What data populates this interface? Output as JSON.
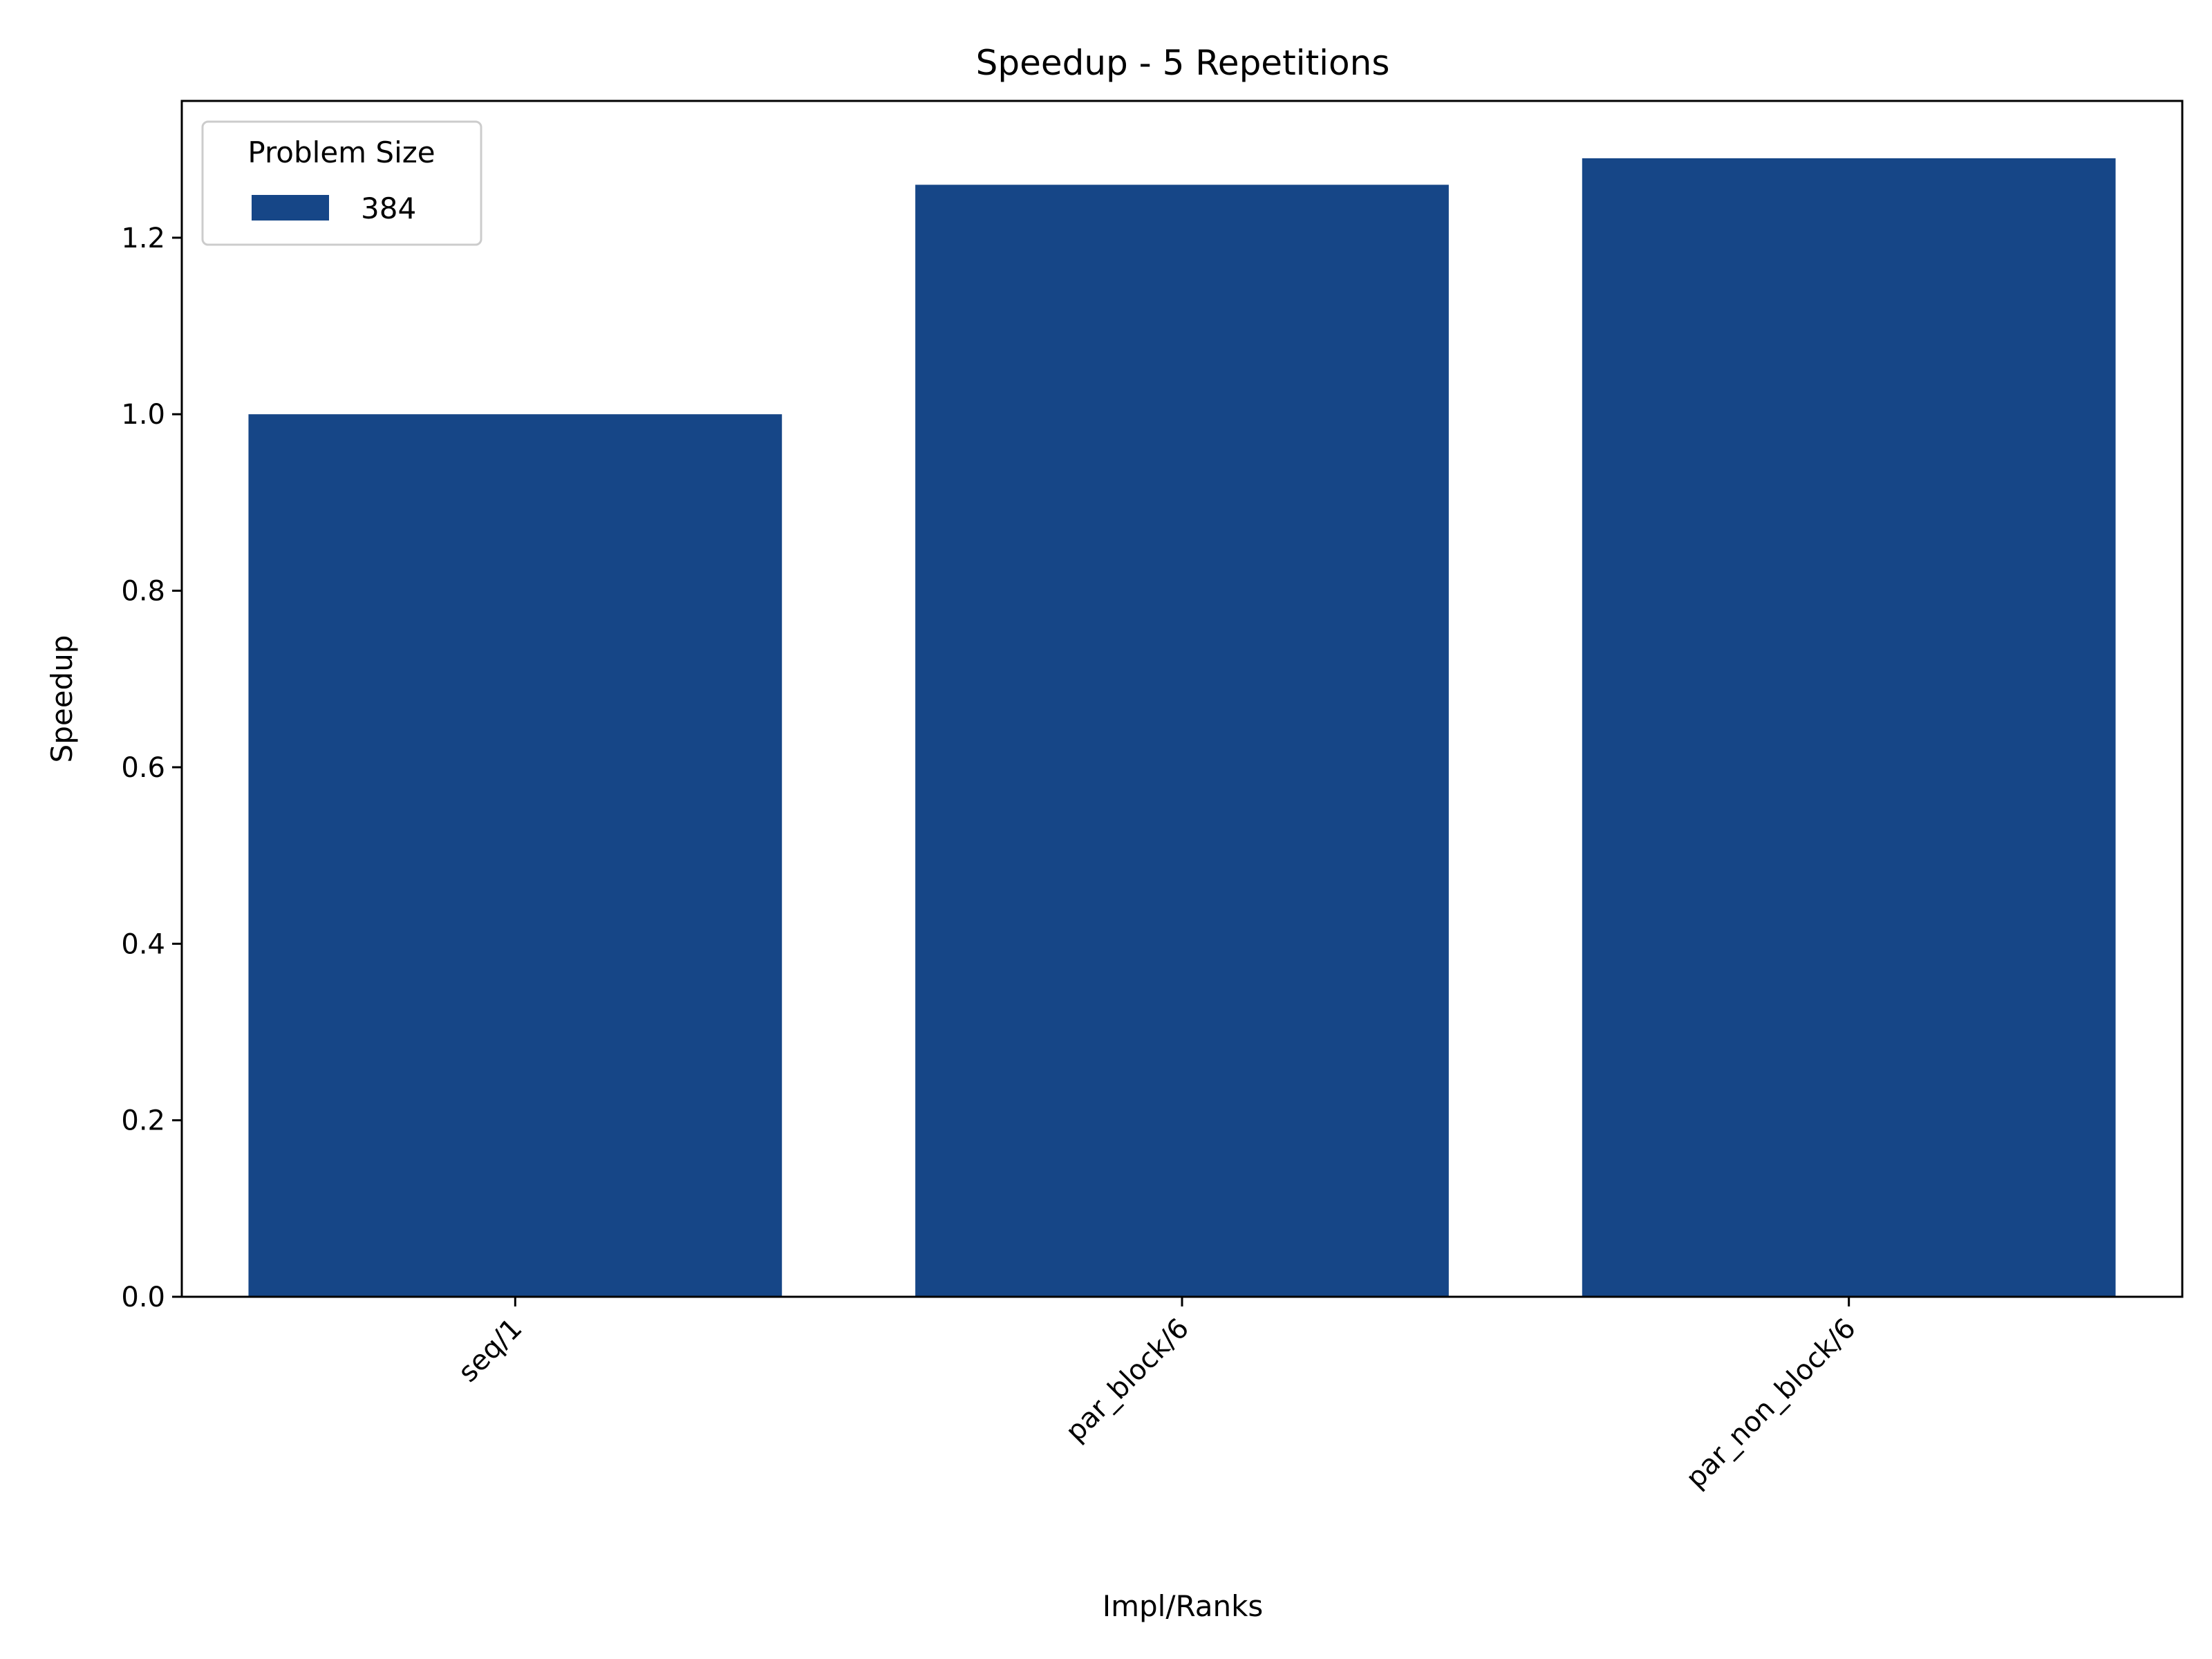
{
  "chart_data": {
    "type": "bar",
    "title": "Speedup - 5 Repetitions",
    "xlabel": "Impl/Ranks",
    "ylabel": "Speedup",
    "categories": [
      "seq/1",
      "par_block/6",
      "par_non_block/6"
    ],
    "series": [
      {
        "name": "384",
        "values": [
          1.0,
          1.26,
          1.29
        ],
        "color": "#164687"
      }
    ],
    "ylim": [
      0,
      1.355
    ],
    "yticks": [
      0.0,
      0.2,
      0.4,
      0.6,
      0.8,
      1.0,
      1.2
    ],
    "ytick_labels": [
      "0.0",
      "0.2",
      "0.4",
      "0.6",
      "0.8",
      "1.0",
      "1.2"
    ],
    "legend": {
      "title": "Problem Size",
      "placement": "upper-left"
    },
    "grid": false,
    "xtick_rotation_deg": 45
  }
}
